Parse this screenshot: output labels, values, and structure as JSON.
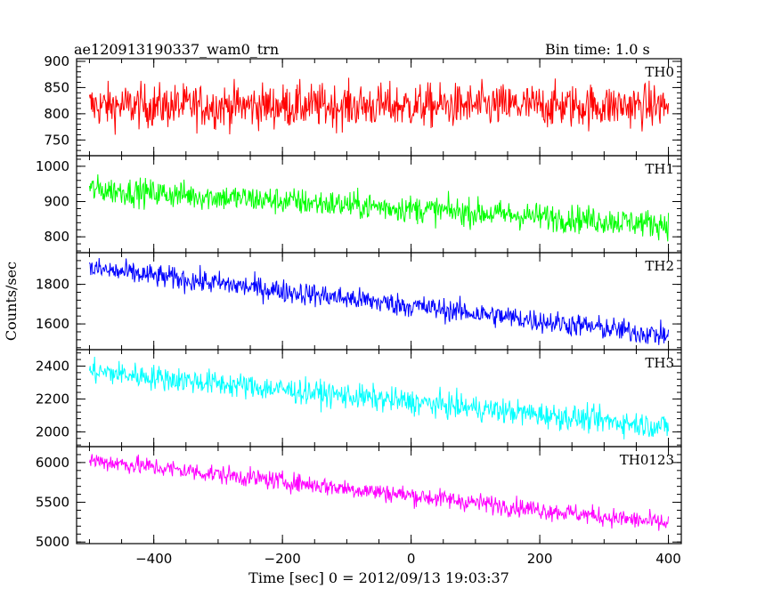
{
  "header": {
    "title": "ae120913190337_wam0_trn",
    "bin_time": "Bin time: 1.0 s"
  },
  "chart_data": {
    "type": "line",
    "xlabel": "Time [sec] 0 = 2012/09/13 19:03:37",
    "ylabel": "Counts/sec",
    "xlim": [
      -520,
      420
    ],
    "x_ticks": [
      -400,
      -200,
      0,
      200,
      400
    ],
    "x_start": -500,
    "x_end": 400,
    "x_step": 1,
    "panels": [
      {
        "name": "TH0",
        "color": "#ff0000",
        "ylim": [
          720,
          905
        ],
        "yticks": [
          750,
          800,
          850,
          900
        ],
        "trend_start": 815,
        "trend_end": 815,
        "noise": 30
      },
      {
        "name": "TH1",
        "color": "#00ff00",
        "ylim": [
          755,
          1030
        ],
        "yticks": [
          800,
          900,
          1000
        ],
        "trend_start": 935,
        "trend_end": 835,
        "noise": 28
      },
      {
        "name": "TH2",
        "color": "#0000ff",
        "ylim": [
          1470,
          1960
        ],
        "yticks": [
          1600,
          1800
        ],
        "trend_start": 1880,
        "trend_end": 1540,
        "noise": 42
      },
      {
        "name": "TH3",
        "color": "#00ffff",
        "ylim": [
          1910,
          2500
        ],
        "yticks": [
          2000,
          2200,
          2400
        ],
        "trend_start": 2370,
        "trend_end": 2030,
        "noise": 55
      },
      {
        "name": "TH0123",
        "color": "#ff00ff",
        "ylim": [
          4980,
          6200
        ],
        "yticks": [
          5000,
          5500,
          6000
        ],
        "trend_start": 6030,
        "trend_end": 5230,
        "noise": 85
      }
    ]
  }
}
